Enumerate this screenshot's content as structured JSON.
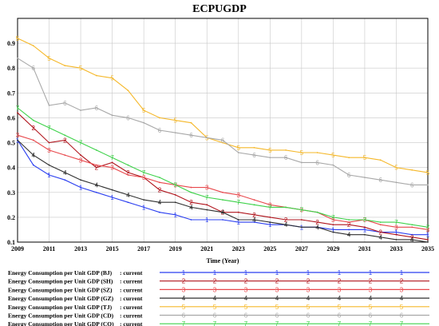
{
  "chart_data": {
    "type": "line",
    "title": "ECPUGDP",
    "xlabel": "Time (Year)",
    "ylabel": "",
    "xlim": [
      2009,
      2035
    ],
    "ylim": [
      0.1,
      1.0
    ],
    "x_ticks": [
      "2009",
      "2011",
      "2013",
      "2015",
      "2017",
      "2019",
      "2021",
      "2023",
      "2025",
      "2027",
      "2029",
      "2031",
      "2033",
      "2035"
    ],
    "y_ticks": [
      "0.1",
      "0.2",
      "0.3",
      "0.4",
      "0.5",
      "0.6",
      "0.7",
      "0.8",
      "0.9"
    ],
    "grid": true,
    "legend_position": "bottom",
    "legend_suffix": ": current",
    "series": [
      {
        "name": "Energy Consumption per Unit GDP  (BJ)",
        "marker": "1",
        "color": "#2b3ff0",
        "x": [
          2009,
          2010,
          2011,
          2012,
          2013,
          2014,
          2015,
          2016,
          2017,
          2018,
          2019,
          2020,
          2021,
          2022,
          2023,
          2024,
          2025,
          2026,
          2027,
          2028,
          2029,
          2030,
          2031,
          2032,
          2033,
          2034,
          2035
        ],
        "values": [
          0.51,
          0.41,
          0.37,
          0.35,
          0.32,
          0.3,
          0.28,
          0.26,
          0.24,
          0.22,
          0.21,
          0.19,
          0.19,
          0.19,
          0.18,
          0.18,
          0.17,
          0.17,
          0.16,
          0.16,
          0.15,
          0.15,
          0.15,
          0.14,
          0.14,
          0.13,
          0.13
        ]
      },
      {
        "name": "Energy Consumption per Unit GDP  (SH)",
        "marker": "2",
        "color": "#b0141c",
        "x": [
          2009,
          2010,
          2011,
          2012,
          2013,
          2014,
          2015,
          2016,
          2017,
          2018,
          2019,
          2020,
          2021,
          2022,
          2023,
          2024,
          2025,
          2026,
          2027,
          2028,
          2029,
          2030,
          2031,
          2032,
          2033,
          2034,
          2035
        ],
        "values": [
          0.62,
          0.56,
          0.5,
          0.51,
          0.45,
          0.4,
          0.42,
          0.38,
          0.36,
          0.31,
          0.29,
          0.26,
          0.25,
          0.22,
          0.22,
          0.21,
          0.2,
          0.19,
          0.19,
          0.18,
          0.17,
          0.17,
          0.16,
          0.14,
          0.13,
          0.12,
          0.11
        ]
      },
      {
        "name": "Energy Consumption per Unit GDP  (SZ)",
        "marker": "3",
        "color": "#e8484c",
        "x": [
          2009,
          2010,
          2011,
          2012,
          2013,
          2014,
          2015,
          2016,
          2017,
          2018,
          2019,
          2020,
          2021,
          2022,
          2023,
          2024,
          2025,
          2026,
          2027,
          2028,
          2029,
          2030,
          2031,
          2032,
          2033,
          2034,
          2035
        ],
        "values": [
          0.53,
          0.51,
          0.47,
          0.45,
          0.43,
          0.41,
          0.4,
          0.37,
          0.36,
          0.34,
          0.33,
          0.32,
          0.32,
          0.3,
          0.29,
          0.27,
          0.25,
          0.24,
          0.23,
          0.22,
          0.19,
          0.18,
          0.19,
          0.17,
          0.16,
          0.16,
          0.15
        ]
      },
      {
        "name": "Energy Consumption per Unit GDP  (GZ)",
        "marker": "4",
        "color": "#303030",
        "x": [
          2009,
          2010,
          2011,
          2012,
          2013,
          2014,
          2015,
          2016,
          2017,
          2018,
          2019,
          2020,
          2021,
          2022,
          2023,
          2024,
          2025,
          2026,
          2027,
          2028,
          2029,
          2030,
          2031,
          2032,
          2033,
          2034,
          2035
        ],
        "values": [
          0.51,
          0.45,
          0.41,
          0.38,
          0.35,
          0.33,
          0.31,
          0.29,
          0.27,
          0.26,
          0.26,
          0.24,
          0.23,
          0.22,
          0.19,
          0.19,
          0.18,
          0.17,
          0.16,
          0.16,
          0.14,
          0.13,
          0.13,
          0.12,
          0.11,
          0.11,
          0.1
        ]
      },
      {
        "name": "Energy Consumption per Unit GDP  (TJ)",
        "marker": "5",
        "color": "#f5b82a",
        "x": [
          2009,
          2010,
          2011,
          2012,
          2013,
          2014,
          2015,
          2016,
          2017,
          2018,
          2019,
          2020,
          2021,
          2022,
          2023,
          2024,
          2025,
          2026,
          2027,
          2028,
          2029,
          2030,
          2031,
          2032,
          2033,
          2034,
          2035
        ],
        "values": [
          0.92,
          0.89,
          0.84,
          0.81,
          0.8,
          0.77,
          0.76,
          0.71,
          0.63,
          0.6,
          0.59,
          0.58,
          0.52,
          0.5,
          0.48,
          0.48,
          0.47,
          0.47,
          0.46,
          0.46,
          0.45,
          0.44,
          0.44,
          0.43,
          0.4,
          0.39,
          0.38
        ]
      },
      {
        "name": "Energy Consumption per Unit GDP  (CD)",
        "marker": "6",
        "color": "#a8a8a8",
        "x": [
          2009,
          2010,
          2011,
          2012,
          2013,
          2014,
          2015,
          2016,
          2017,
          2018,
          2019,
          2020,
          2021,
          2022,
          2023,
          2024,
          2025,
          2026,
          2027,
          2028,
          2029,
          2030,
          2031,
          2032,
          2033,
          2034,
          2035
        ],
        "values": [
          0.84,
          0.8,
          0.65,
          0.66,
          0.63,
          0.64,
          0.61,
          0.6,
          0.58,
          0.55,
          0.54,
          0.53,
          0.52,
          0.51,
          0.46,
          0.45,
          0.44,
          0.44,
          0.42,
          0.42,
          0.41,
          0.37,
          0.36,
          0.35,
          0.34,
          0.33,
          0.33
        ]
      },
      {
        "name": "Energy Consumption per Unit GDP  (CQ)",
        "marker": "7",
        "color": "#3ed24a",
        "x": [
          2009,
          2010,
          2011,
          2012,
          2013,
          2014,
          2015,
          2016,
          2017,
          2018,
          2019,
          2020,
          2021,
          2022,
          2023,
          2024,
          2025,
          2026,
          2027,
          2028,
          2029,
          2030,
          2031,
          2032,
          2033,
          2034,
          2035
        ],
        "values": [
          0.64,
          0.59,
          0.56,
          0.53,
          0.5,
          0.47,
          0.44,
          0.41,
          0.38,
          0.36,
          0.33,
          0.3,
          0.28,
          0.27,
          0.26,
          0.25,
          0.24,
          0.24,
          0.23,
          0.22,
          0.2,
          0.19,
          0.19,
          0.18,
          0.18,
          0.17,
          0.16
        ]
      }
    ]
  }
}
